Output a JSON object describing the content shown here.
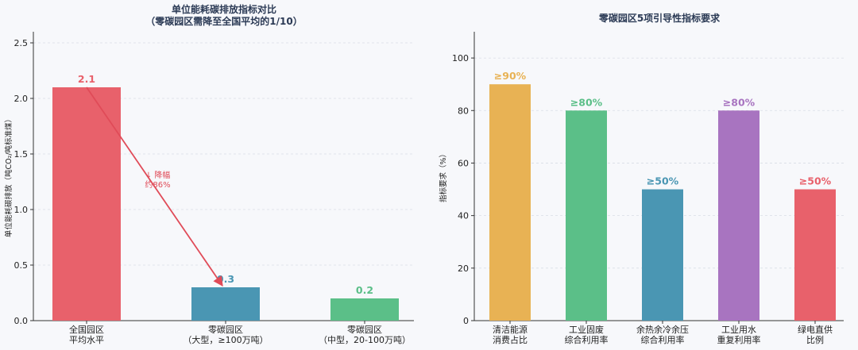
{
  "chart_data": [
    {
      "type": "bar",
      "title": "单位能耗碳排放指标对比",
      "subtitle": "（零碳园区需降至全国平均的1/10）",
      "ylabel": "单位能耗碳排放（吨CO₂/吨标准煤）",
      "ylim": [
        0,
        2.6
      ],
      "yticks": [
        "0.0",
        "0.5",
        "1.0",
        "1.5",
        "2.0",
        "2.5"
      ],
      "grid": true,
      "categories": [
        [
          "全国园区",
          "平均水平"
        ],
        [
          "零碳园区",
          "（大型，≥100万吨）"
        ],
        [
          "零碳园区",
          "（中型，20-100万吨）"
        ]
      ],
      "values": [
        2.1,
        0.3,
        0.2
      ],
      "value_labels": [
        "2.1",
        "0.3",
        "0.2"
      ],
      "colors": [
        "#e8616b",
        "#4a96b3",
        "#5bbf88"
      ],
      "annotation": {
        "lines": [
          "↓ 降幅",
          "约86%"
        ],
        "color": "#e04b58",
        "from_category": 0,
        "to_category": 1
      }
    },
    {
      "type": "bar",
      "title": "零碳园区5项引导性指标要求",
      "ylabel": "指标要求（%）",
      "ylim": [
        0,
        110
      ],
      "yticks": [
        "0",
        "20",
        "40",
        "60",
        "80",
        "100"
      ],
      "grid": true,
      "categories": [
        [
          "清洁能源",
          "消费占比"
        ],
        [
          "工业固废",
          "综合利用率"
        ],
        [
          "余热余冷余压",
          "综合利用率"
        ],
        [
          "工业用水",
          "重复利用率"
        ],
        [
          "绿电直供",
          "比例"
        ]
      ],
      "values": [
        90,
        80,
        50,
        80,
        50
      ],
      "value_labels": [
        "≥90%",
        "≥80%",
        "≥50%",
        "≥80%",
        "≥50%"
      ],
      "colors": [
        "#e8b254",
        "#5bbf88",
        "#4a96b3",
        "#a874c0",
        "#e8616b"
      ]
    }
  ]
}
